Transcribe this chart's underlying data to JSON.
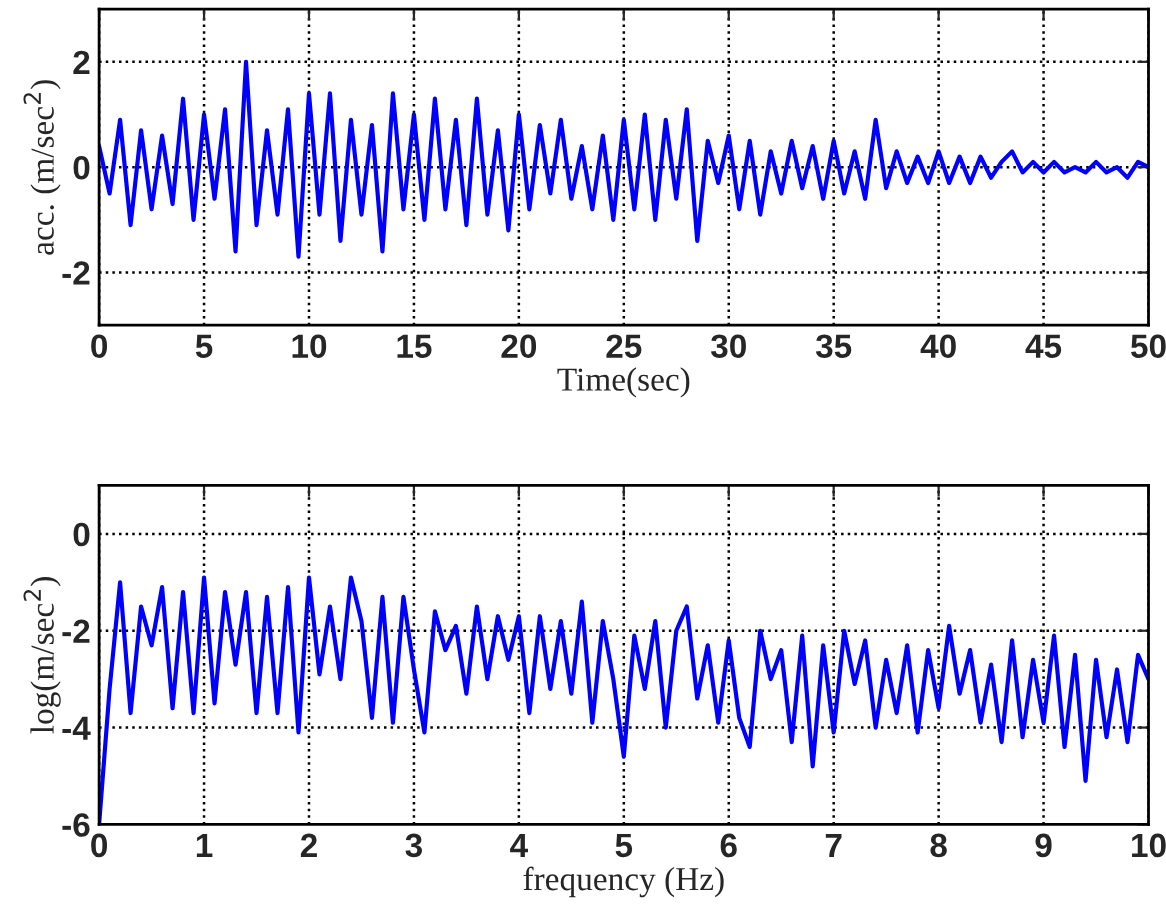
{
  "chart_data": [
    {
      "type": "line",
      "xlabel": "Time(sec)",
      "ylabel": "acc. (m/sec$^{2}$)",
      "xlim": [
        0,
        50
      ],
      "ylim": [
        -3,
        3
      ],
      "xticks": [
        0,
        5,
        10,
        15,
        20,
        25,
        30,
        35,
        40,
        45,
        50
      ],
      "yticks": [
        -2,
        0,
        2
      ],
      "grid": true,
      "line_style": "solid",
      "x": [
        0,
        0.5,
        1,
        1.5,
        2,
        2.5,
        3,
        3.5,
        4,
        4.5,
        5,
        5.5,
        6,
        6.5,
        7,
        7.5,
        8,
        8.5,
        9,
        9.5,
        10,
        10.5,
        11,
        11.5,
        12,
        12.5,
        13,
        13.5,
        14,
        14.5,
        15,
        15.5,
        16,
        16.5,
        17,
        17.5,
        18,
        18.5,
        19,
        19.5,
        20,
        20.5,
        21,
        21.5,
        22,
        22.5,
        23,
        23.5,
        24,
        24.5,
        25,
        25.5,
        26,
        26.5,
        27,
        27.5,
        28,
        28.5,
        29,
        29.5,
        30,
        30.5,
        31,
        31.5,
        32,
        32.5,
        33,
        33.5,
        34,
        34.5,
        35,
        35.5,
        36,
        36.5,
        37,
        37.5,
        38,
        38.5,
        39,
        39.5,
        40,
        40.5,
        41,
        41.5,
        42,
        42.5,
        43,
        43.5,
        44,
        44.5,
        45,
        45.5,
        46,
        46.5,
        47,
        47.5,
        48,
        48.5,
        49,
        49.5,
        50
      ],
      "series": [
        {
          "color": "#0000ff",
          "values": [
            0.4,
            -0.5,
            0.9,
            -1.1,
            0.7,
            -0.8,
            0.6,
            -0.7,
            1.3,
            -1.0,
            1.0,
            -0.6,
            1.1,
            -1.6,
            2.0,
            -1.1,
            0.7,
            -0.9,
            1.1,
            -1.7,
            1.4,
            -0.9,
            1.4,
            -1.4,
            0.9,
            -0.9,
            0.8,
            -1.6,
            1.4,
            -0.8,
            1.0,
            -1.0,
            1.3,
            -0.8,
            0.9,
            -1.1,
            1.3,
            -0.9,
            0.7,
            -1.2,
            1.0,
            -0.8,
            0.8,
            -0.5,
            0.9,
            -0.6,
            0.4,
            -0.8,
            0.6,
            -1.0,
            0.9,
            -0.8,
            1.0,
            -1.0,
            0.9,
            -0.6,
            1.1,
            -1.4,
            0.5,
            -0.3,
            0.6,
            -0.8,
            0.5,
            -0.9,
            0.3,
            -0.5,
            0.5,
            -0.4,
            0.4,
            -0.6,
            0.5,
            -0.5,
            0.3,
            -0.6,
            0.9,
            -0.4,
            0.3,
            -0.3,
            0.2,
            -0.3,
            0.3,
            -0.3,
            0.2,
            -0.3,
            0.2,
            -0.2,
            0.1,
            0.3,
            -0.1,
            0.1,
            -0.1,
            0.1,
            -0.1,
            0.0,
            -0.1,
            0.1,
            -0.1,
            0.0,
            -0.2,
            0.1,
            0.0
          ]
        }
      ]
    },
    {
      "type": "line",
      "xlabel": "frequency (Hz)",
      "ylabel": "log(m/sec$^{2}$)",
      "xlim": [
        0,
        10
      ],
      "ylim": [
        -6,
        1
      ],
      "xticks": [
        0,
        1,
        2,
        3,
        4,
        5,
        6,
        7,
        8,
        9,
        10
      ],
      "yticks": [
        -6,
        -4,
        -2,
        0
      ],
      "grid": true,
      "line_style": "solid",
      "x": [
        0,
        0.1,
        0.2,
        0.3,
        0.4,
        0.5,
        0.6,
        0.7,
        0.8,
        0.9,
        1,
        1.1,
        1.2,
        1.3,
        1.4,
        1.5,
        1.6,
        1.7,
        1.8,
        1.9,
        2,
        2.1,
        2.2,
        2.3,
        2.4,
        2.5,
        2.6,
        2.7,
        2.8,
        2.9,
        3,
        3.1,
        3.2,
        3.3,
        3.4,
        3.5,
        3.6,
        3.7,
        3.8,
        3.9,
        4,
        4.1,
        4.2,
        4.3,
        4.4,
        4.5,
        4.6,
        4.7,
        4.8,
        4.9,
        5,
        5.1,
        5.2,
        5.3,
        5.4,
        5.5,
        5.6,
        5.7,
        5.8,
        5.9,
        6,
        6.1,
        6.2,
        6.3,
        6.4,
        6.5,
        6.6,
        6.7,
        6.8,
        6.9,
        7,
        7.1,
        7.2,
        7.3,
        7.4,
        7.5,
        7.6,
        7.7,
        7.8,
        7.9,
        8,
        8.1,
        8.2,
        8.3,
        8.4,
        8.5,
        8.6,
        8.7,
        8.8,
        8.9,
        9,
        9.1,
        9.2,
        9.3,
        9.4,
        9.5,
        9.6,
        9.7,
        9.8,
        9.9,
        10
      ],
      "series": [
        {
          "color": "#0000ff",
          "values": [
            -6,
            -3.2,
            -1.0,
            -3.7,
            -1.5,
            -2.3,
            -1.1,
            -3.6,
            -1.2,
            -3.7,
            -0.9,
            -3.5,
            -1.2,
            -2.7,
            -1.2,
            -3.7,
            -1.3,
            -3.7,
            -1.1,
            -4.1,
            -0.9,
            -2.9,
            -1.5,
            -3.0,
            -0.9,
            -1.8,
            -3.8,
            -1.3,
            -3.9,
            -1.3,
            -2.8,
            -4.1,
            -1.6,
            -2.4,
            -1.9,
            -3.3,
            -1.5,
            -3.0,
            -1.7,
            -2.6,
            -1.7,
            -3.7,
            -1.7,
            -3.2,
            -1.8,
            -3.3,
            -1.4,
            -3.9,
            -1.8,
            -3.0,
            -4.6,
            -2.1,
            -3.2,
            -1.8,
            -4.0,
            -2.0,
            -1.5,
            -3.4,
            -2.3,
            -3.9,
            -2.2,
            -3.8,
            -4.4,
            -2.0,
            -3.0,
            -2.4,
            -4.3,
            -2.1,
            -4.8,
            -2.3,
            -4.1,
            -2.0,
            -3.1,
            -2.2,
            -4.0,
            -2.6,
            -3.7,
            -2.3,
            -4.1,
            -2.4,
            -3.6,
            -1.9,
            -3.3,
            -2.4,
            -3.9,
            -2.7,
            -4.3,
            -2.2,
            -4.2,
            -2.6,
            -3.9,
            -2.1,
            -4.4,
            -2.5,
            -5.1,
            -2.6,
            -4.2,
            -2.8,
            -4.3,
            -2.5,
            -3.0
          ]
        }
      ]
    }
  ]
}
